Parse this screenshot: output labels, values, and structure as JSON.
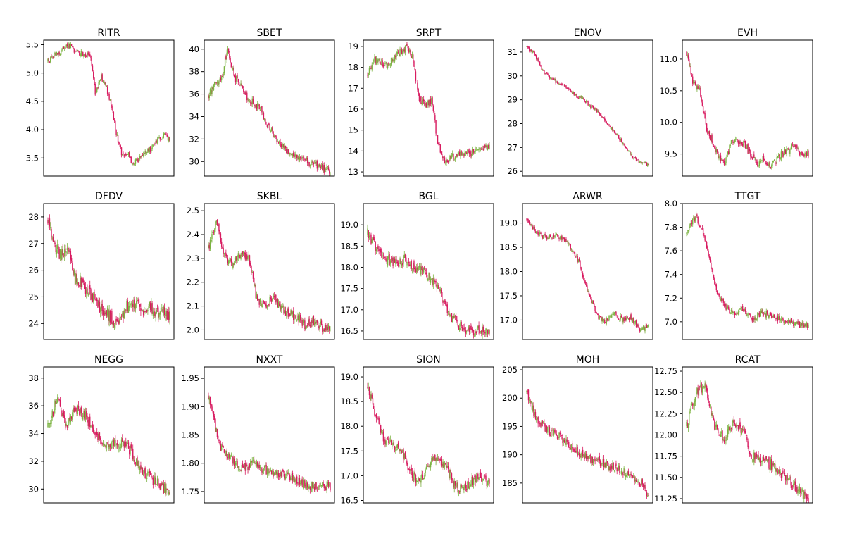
{
  "colors": {
    "up": "#7cb342",
    "down": "#d81b60",
    "frame": "#000000"
  },
  "chart_data": [
    {
      "type": "candlestick",
      "title": "RITR",
      "ylim": [
        3.18,
        5.58
      ],
      "yticks": [
        3.5,
        4.0,
        4.5,
        5.0,
        5.5
      ],
      "yticklabels": [
        "3.5",
        "4.0",
        "4.5",
        "5.0",
        "5.5"
      ],
      "anchors": [
        5.2,
        5.32,
        5.36,
        5.42,
        5.5,
        5.4,
        5.35,
        5.33,
        5.3,
        4.6,
        4.95,
        4.75,
        4.4,
        3.9,
        3.55,
        3.6,
        3.4,
        3.45,
        3.6,
        3.62,
        3.7,
        3.85,
        3.9,
        3.82
      ],
      "vol": 0.05
    },
    {
      "type": "candlestick",
      "title": "SBET",
      "ylim": [
        28.7,
        40.8
      ],
      "yticks": [
        30,
        32,
        34,
        36,
        38,
        40
      ],
      "yticklabels": [
        "30",
        "32",
        "34",
        "36",
        "38",
        "40"
      ],
      "anchors": [
        35.8,
        36.8,
        37.2,
        40.2,
        37.5,
        37.0,
        35.8,
        35.2,
        34.8,
        33.5,
        32.5,
        31.8,
        31.0,
        30.8,
        30.3,
        30.0,
        29.9,
        29.6,
        29.3,
        29.2
      ],
      "vol": 0.35
    },
    {
      "type": "candlestick",
      "title": "SRPT",
      "ylim": [
        12.8,
        19.3
      ],
      "yticks": [
        13,
        14,
        15,
        16,
        17,
        18,
        19
      ],
      "yticklabels": [
        "13",
        "14",
        "15",
        "16",
        "17",
        "18",
        "19"
      ],
      "anchors": [
        17.6,
        18.4,
        18.3,
        18.1,
        18.4,
        18.7,
        19.0,
        18.5,
        16.5,
        16.2,
        16.4,
        14.3,
        13.5,
        13.7,
        13.8,
        13.9,
        13.9,
        14.0,
        14.1,
        14.2
      ],
      "vol": 0.18
    },
    {
      "type": "candlestick",
      "title": "ENOV",
      "ylim": [
        25.8,
        31.5
      ],
      "yticks": [
        26,
        27,
        28,
        29,
        30,
        31
      ],
      "yticklabels": [
        "26",
        "27",
        "28",
        "29",
        "30",
        "31"
      ],
      "anchors": [
        31.2,
        30.9,
        30.2,
        29.9,
        29.7,
        29.5,
        29.2,
        29.0,
        28.7,
        28.4,
        28.0,
        27.6,
        27.1,
        26.6,
        26.4,
        26.3
      ],
      "vol": 0.08
    },
    {
      "type": "candlestick",
      "title": "EVH",
      "ylim": [
        9.15,
        11.3
      ],
      "yticks": [
        9.5,
        10.0,
        10.5,
        11.0
      ],
      "yticklabels": [
        "9.5",
        "10.0",
        "10.5",
        "11.0"
      ],
      "anchors": [
        11.1,
        10.6,
        10.55,
        9.95,
        9.7,
        9.45,
        9.35,
        9.7,
        9.72,
        9.65,
        9.5,
        9.35,
        9.45,
        9.3,
        9.4,
        9.5,
        9.55,
        9.65,
        9.45,
        9.5
      ],
      "vol": 0.06
    },
    {
      "type": "candlestick",
      "title": "DFDV",
      "ylim": [
        23.4,
        28.5
      ],
      "yticks": [
        24,
        25,
        26,
        27,
        28
      ],
      "yticklabels": [
        "24",
        "25",
        "26",
        "27",
        "28"
      ],
      "anchors": [
        27.8,
        26.8,
        26.6,
        26.9,
        25.7,
        25.5,
        25.2,
        24.8,
        24.6,
        24.3,
        23.9,
        24.3,
        24.8,
        24.7,
        24.4,
        24.6,
        24.3,
        24.4,
        24.3
      ],
      "vol": 0.25
    },
    {
      "type": "candlestick",
      "title": "SKBL",
      "ylim": [
        1.96,
        2.53
      ],
      "yticks": [
        2.0,
        2.1,
        2.2,
        2.3,
        2.4,
        2.5
      ],
      "yticklabels": [
        "2.0",
        "2.1",
        "2.2",
        "2.3",
        "2.4",
        "2.5"
      ],
      "anchors": [
        2.35,
        2.45,
        2.3,
        2.28,
        2.32,
        2.3,
        2.12,
        2.1,
        2.14,
        2.09,
        2.07,
        2.05,
        2.02,
        2.04,
        2.01,
        2.0
      ],
      "vol": 0.02
    },
    {
      "type": "candlestick",
      "title": "BGL",
      "ylim": [
        16.3,
        19.5
      ],
      "yticks": [
        16.5,
        17.0,
        17.5,
        18.0,
        18.5,
        19.0
      ],
      "yticklabels": [
        "16.5",
        "17.0",
        "17.5",
        "18.0",
        "18.5",
        "19.0"
      ],
      "anchors": [
        18.8,
        18.4,
        18.2,
        18.1,
        18.2,
        18.0,
        17.9,
        17.7,
        17.3,
        16.8,
        16.6,
        16.5,
        16.5,
        16.5
      ],
      "vol": 0.12
    },
    {
      "type": "candlestick",
      "title": "ARWR",
      "ylim": [
        16.6,
        19.4
      ],
      "yticks": [
        17.0,
        17.5,
        18.0,
        18.5,
        19.0
      ],
      "yticklabels": [
        "17.0",
        "17.5",
        "18.0",
        "18.5",
        "19.0"
      ],
      "anchors": [
        19.1,
        18.8,
        18.7,
        18.75,
        18.7,
        18.5,
        18.2,
        17.6,
        17.1,
        16.95,
        17.15,
        17.0,
        17.05,
        16.8,
        16.85
      ],
      "vol": 0.06
    },
    {
      "type": "candlestick",
      "title": "TTGT",
      "ylim": [
        6.85,
        8.0
      ],
      "yticks": [
        7.0,
        7.2,
        7.4,
        7.6,
        7.8,
        8.0
      ],
      "yticklabels": [
        "7.0",
        "7.2",
        "7.4",
        "7.6",
        "7.8",
        "8.0"
      ],
      "anchors": [
        7.75,
        7.9,
        7.7,
        7.3,
        7.15,
        7.05,
        7.1,
        7.02,
        7.08,
        7.05,
        7.02,
        7.0,
        6.98,
        6.97
      ],
      "vol": 0.03
    },
    {
      "type": "candlestick",
      "title": "NEGG",
      "ylim": [
        29.0,
        38.8
      ],
      "yticks": [
        30,
        32,
        34,
        36,
        38
      ],
      "yticklabels": [
        "30",
        "32",
        "34",
        "36",
        "38"
      ],
      "anchors": [
        34.5,
        36.5,
        34.5,
        35.8,
        35.2,
        34.2,
        33.0,
        33.2,
        33.3,
        32.6,
        31.3,
        30.8,
        30.2,
        29.8
      ],
      "vol": 0.4
    },
    {
      "type": "candlestick",
      "title": "NXXT",
      "ylim": [
        1.73,
        1.97
      ],
      "yticks": [
        1.75,
        1.8,
        1.85,
        1.9,
        1.95
      ],
      "yticklabels": [
        "1.75",
        "1.80",
        "1.85",
        "1.90",
        "1.95"
      ],
      "anchors": [
        1.92,
        1.83,
        1.81,
        1.79,
        1.8,
        1.79,
        1.78,
        1.78,
        1.77,
        1.76,
        1.76,
        1.76
      ],
      "vol": 0.008
    },
    {
      "type": "candlestick",
      "title": "SION",
      "ylim": [
        16.45,
        19.2
      ],
      "yticks": [
        16.5,
        17.0,
        17.5,
        18.0,
        18.5,
        19.0
      ],
      "yticklabels": [
        "16.5",
        "17.0",
        "17.5",
        "18.0",
        "18.5",
        "19.0"
      ],
      "anchors": [
        18.8,
        18.2,
        17.7,
        17.6,
        17.5,
        17.0,
        16.9,
        17.2,
        17.4,
        17.2,
        16.8,
        16.7,
        16.9,
        17.0,
        16.8
      ],
      "vol": 0.1
    },
    {
      "type": "candlestick",
      "title": "MOH",
      "ylim": [
        181.5,
        205.5
      ],
      "yticks": [
        185,
        190,
        195,
        200,
        205
      ],
      "yticklabels": [
        "185",
        "190",
        "195",
        "200",
        "205"
      ],
      "anchors": [
        201,
        196,
        194.5,
        193.5,
        192,
        190.5,
        189.5,
        189,
        188,
        187.5,
        186.5,
        185.5,
        183
      ],
      "vol": 0.8
    },
    {
      "type": "candlestick",
      "title": "RCAT",
      "ylim": [
        11.2,
        12.8
      ],
      "yticks": [
        11.25,
        11.5,
        11.75,
        12.0,
        12.25,
        12.5,
        12.75
      ],
      "yticklabels": [
        "11.25",
        "11.50",
        "11.75",
        "12.00",
        "12.25",
        "12.50",
        "12.75"
      ],
      "anchors": [
        12.1,
        12.5,
        12.6,
        12.1,
        11.95,
        12.15,
        12.05,
        11.75,
        11.7,
        11.65,
        11.55,
        11.45,
        11.35,
        11.25
      ],
      "vol": 0.06
    }
  ]
}
